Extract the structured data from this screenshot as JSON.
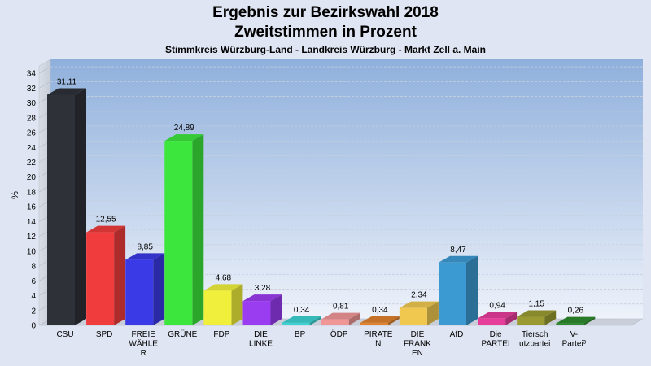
{
  "chart_data": {
    "type": "bar",
    "title": "Ergebnis zur Bezirkswahl 2018",
    "subtitle": "Zweitstimmen in Prozent",
    "caption": "Stimmkreis Würzburg-Land - Landkreis Würzburg - Markt Zell a. Main",
    "ylabel": "%",
    "xlabel": "",
    "ylim": [
      0,
      35
    ],
    "yticks": [
      0,
      2,
      4,
      6,
      8,
      10,
      12,
      14,
      16,
      18,
      20,
      22,
      24,
      26,
      28,
      30,
      32,
      34
    ],
    "grid": true,
    "categories": [
      [
        "CSU"
      ],
      [
        "SPD"
      ],
      [
        "FREIE",
        "WÄHLE",
        "R"
      ],
      [
        "GRÜNE"
      ],
      [
        "FDP"
      ],
      [
        "DIE",
        "LINKE"
      ],
      [
        "BP"
      ],
      [
        "ÖDP"
      ],
      [
        "PIRATE",
        "N"
      ],
      [
        "DIE",
        "FRANK",
        "EN"
      ],
      [
        "AfD"
      ],
      [
        "Die",
        "PARTEI"
      ],
      [
        "Tiersch",
        "utzpartei"
      ],
      [
        "V-",
        "Partei³"
      ]
    ],
    "values": [
      31.11,
      12.55,
      8.85,
      24.89,
      4.68,
      3.28,
      0.34,
      0.81,
      0.34,
      2.34,
      8.47,
      0.94,
      1.15,
      0.26
    ],
    "value_labels": [
      "31,11",
      "12,55",
      "8,85",
      "24,89",
      "4,68",
      "3,28",
      "0,34",
      "0,81",
      "0,34",
      "2,34",
      "8,47",
      "0,94",
      "1,15",
      "0,26"
    ],
    "colors": [
      "#2e3138",
      "#f03c3c",
      "#3a3ae6",
      "#3ce63c",
      "#f0f03c",
      "#9a3cf0",
      "#3cd2d2",
      "#f09696",
      "#e0822e",
      "#f0c850",
      "#3c9ad2",
      "#e63c9a",
      "#9a9a32",
      "#2e8a2e"
    ]
  }
}
